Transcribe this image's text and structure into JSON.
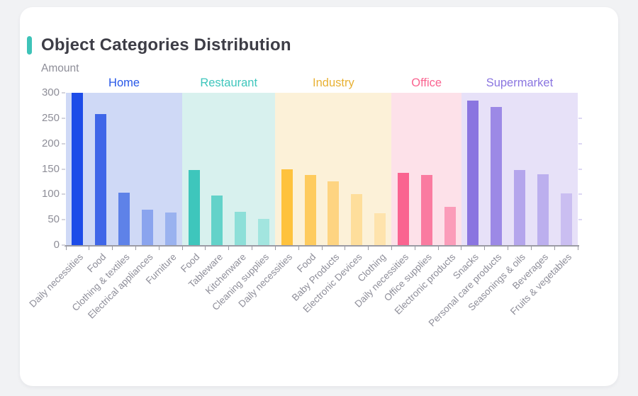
{
  "page": {
    "title": "Object Categories Distribution",
    "accent_color": "#3ec3b8",
    "background_color": "#f1f2f4",
    "card_color": "#ffffff"
  },
  "chart_data": {
    "type": "bar",
    "title": "Object Categories Distribution",
    "ylabel": "Amount",
    "xlabel": "",
    "ylim": [
      0,
      300
    ],
    "yticks": [
      0,
      50,
      100,
      150,
      200,
      250,
      300
    ],
    "grid": false,
    "legend_position": "none",
    "axis_color": "#9b9ba4",
    "tick_label_color": "#8e8e98",
    "groups": [
      {
        "name": "Home",
        "label_color": "#2757e8",
        "band_color": "#cfd9f6",
        "bars": [
          {
            "category": "Daily necessities",
            "value": 300,
            "color": "#1d4ce8"
          },
          {
            "category": "Food",
            "value": 258,
            "color": "#3f66e8"
          },
          {
            "category": "Clothing & textiles",
            "value": 103,
            "color": "#5e82e8"
          },
          {
            "category": "Electrical appliances",
            "value": 70,
            "color": "#8aa4ee"
          },
          {
            "category": "Furniture",
            "value": 64,
            "color": "#9ab2ef"
          }
        ]
      },
      {
        "name": "Restaurant",
        "label_color": "#3ec6bc",
        "band_color": "#d8f1ee",
        "bars": [
          {
            "category": "Food",
            "value": 148,
            "color": "#3ec6bc"
          },
          {
            "category": "Tableware",
            "value": 97,
            "color": "#63d2c9"
          },
          {
            "category": "Kitchenware",
            "value": 65,
            "color": "#8ddfd8"
          },
          {
            "category": "Cleaning supplies",
            "value": 52,
            "color": "#a2e5df"
          }
        ]
      },
      {
        "name": "Industry",
        "label_color": "#e8b134",
        "band_color": "#fcf1d8",
        "bars": [
          {
            "category": "Daily necessities",
            "value": 150,
            "color": "#fec23d"
          },
          {
            "category": "Food",
            "value": 138,
            "color": "#fecb5e"
          },
          {
            "category": "Baby Products",
            "value": 126,
            "color": "#fed481"
          },
          {
            "category": "Electronic Devices",
            "value": 100,
            "color": "#fede9b"
          },
          {
            "category": "Clothing",
            "value": 63,
            "color": "#fee3ac"
          }
        ]
      },
      {
        "name": "Office",
        "label_color": "#fa6490",
        "band_color": "#fde1e9",
        "bars": [
          {
            "category": "Daily necessities",
            "value": 142,
            "color": "#fa6490"
          },
          {
            "category": "Office supplies",
            "value": 138,
            "color": "#fa7ba0"
          },
          {
            "category": "Electronic products",
            "value": 75,
            "color": "#fb9cb9"
          }
        ]
      },
      {
        "name": "Supermarket",
        "label_color": "#8a75e0",
        "band_color": "#e7e1f8",
        "bars": [
          {
            "category": "Snacks",
            "value": 285,
            "color": "#8a75e0"
          },
          {
            "category": "Personal care products",
            "value": 272,
            "color": "#9c89e6"
          },
          {
            "category": "Seasonings & oils",
            "value": 148,
            "color": "#b4a5ec"
          },
          {
            "category": "Beverages",
            "value": 140,
            "color": "#bcafee"
          },
          {
            "category": "Fruits & vegetables",
            "value": 102,
            "color": "#cabef1"
          }
        ]
      }
    ]
  }
}
